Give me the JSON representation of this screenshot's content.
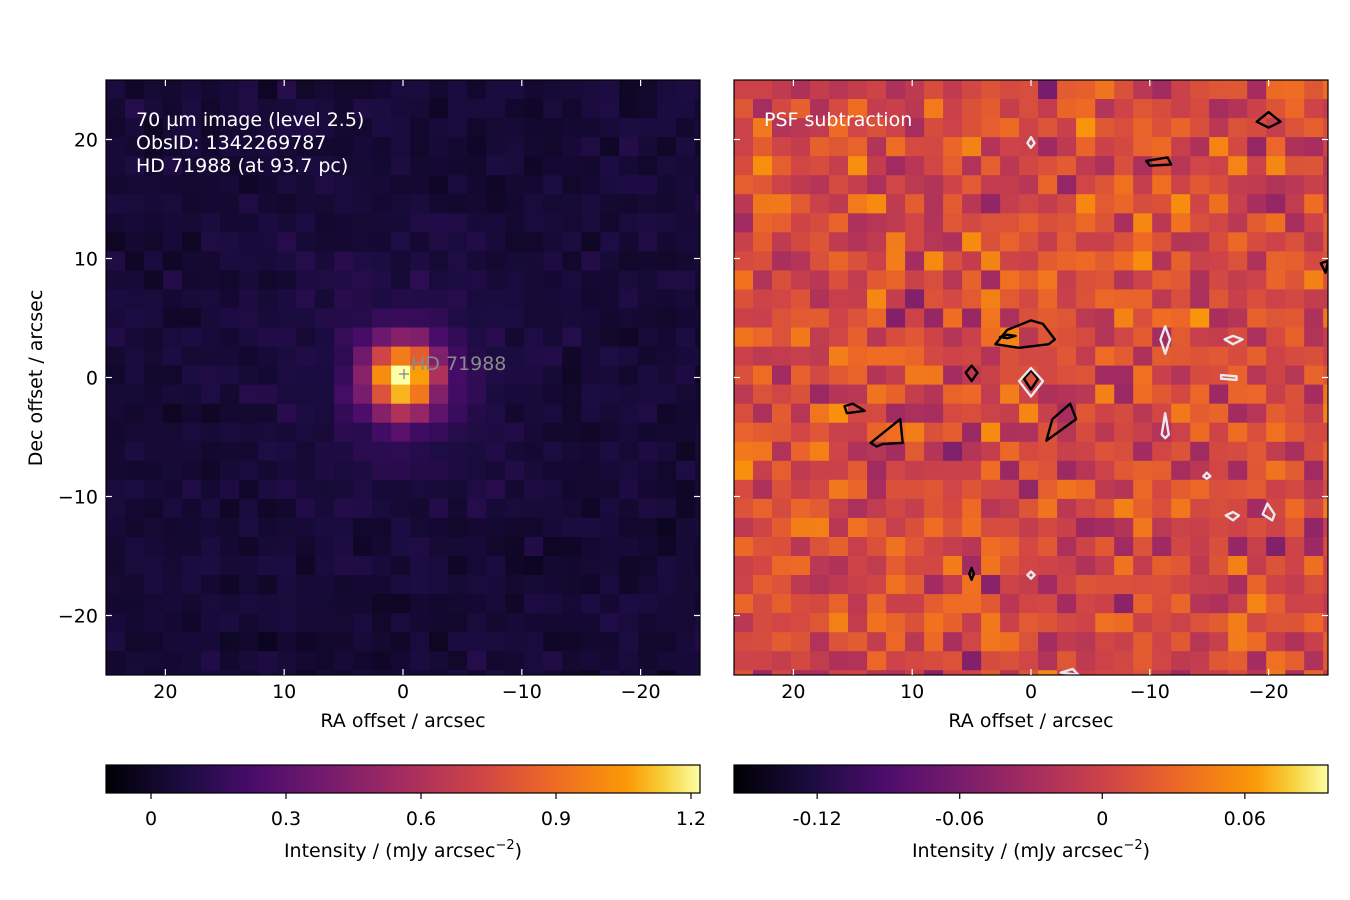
{
  "chart_data": [
    {
      "type": "heatmap",
      "panel": "left",
      "annotation_lines": [
        "70 µm image (level 2.5)",
        "ObsID: 1342269787",
        "HD 71988 (at 93.7 pc)"
      ],
      "star_label": "HD  71988",
      "star_position": [
        0,
        0
      ],
      "xlabel": "RA offset / arcsec",
      "ylabel": "Dec offset / arcsec",
      "xlim": [
        25,
        -25
      ],
      "ylim": [
        -25,
        25
      ],
      "xticks": [
        20,
        10,
        0,
        -10,
        -20
      ],
      "xtick_labels": [
        "20",
        "10",
        "0",
        "−10",
        "−20"
      ],
      "yticks": [
        20,
        10,
        0,
        -10,
        -20
      ],
      "ytick_labels": [
        "20",
        "10",
        "0",
        "−10",
        "−20"
      ],
      "pixel_size_arcsec": 1.6,
      "colormap": "inferno",
      "colorbar": {
        "range": [
          -0.1,
          1.22
        ],
        "ticks": [
          0,
          0.3,
          0.6,
          0.9,
          1.2
        ],
        "tick_labels": [
          "0",
          "0.3",
          "0.6",
          "0.9",
          "1.2"
        ],
        "label": "Intensity / (mJy arcsec",
        "label_exp": "−2",
        "label_end": ")"
      },
      "source": {
        "x": 0,
        "y": 0,
        "peak": 1.2,
        "sigma_arcsec": 2.2
      },
      "background_level": 0.04
    },
    {
      "type": "heatmap",
      "panel": "right",
      "annotation_lines": [
        "PSF subtraction"
      ],
      "xlabel": "RA offset / arcsec",
      "xlim": [
        25,
        -25
      ],
      "ylim": [
        -25,
        25
      ],
      "xticks": [
        20,
        10,
        0,
        -10,
        -20
      ],
      "xtick_labels": [
        "20",
        "10",
        "0",
        "−10",
        "−20"
      ],
      "pixel_size_arcsec": 1.6,
      "colormap": "inferno",
      "colorbar": {
        "range": [
          -0.155,
          0.095
        ],
        "ticks": [
          -0.12,
          -0.06,
          0,
          0.06
        ],
        "tick_labels": [
          "-0.12",
          "-0.06",
          "0",
          "0.06"
        ],
        "label": "Intensity / (mJy arcsec",
        "label_exp": "−2",
        "label_end": ")"
      },
      "contours_positive": [
        [
          [
            3,
            2.8
          ],
          [
            2,
            4
          ],
          [
            0,
            4.8
          ],
          [
            -1,
            4.5
          ],
          [
            -2,
            3.2
          ],
          [
            -1.5,
            2.8
          ],
          [
            1,
            2.5
          ],
          [
            3,
            2.8
          ]
        ],
        [
          [
            2,
            3.3
          ],
          [
            1.3,
            3.5
          ],
          [
            2,
            3.6
          ],
          [
            2.6,
            3.4
          ],
          [
            2,
            3.3
          ]
        ],
        [
          [
            5,
            -0.3
          ],
          [
            4.5,
            0.4
          ],
          [
            5,
            1
          ],
          [
            5.5,
            0.4
          ],
          [
            5,
            -0.3
          ]
        ],
        [
          [
            0,
            -1
          ],
          [
            -0.6,
            -0.1
          ],
          [
            0,
            0.6
          ],
          [
            0.6,
            -0.1
          ],
          [
            0,
            -1
          ]
        ],
        [
          [
            15,
            -2.2
          ],
          [
            14,
            -2.8
          ],
          [
            15.5,
            -3
          ],
          [
            15.7,
            -2.4
          ],
          [
            15,
            -2.2
          ]
        ],
        [
          [
            13.5,
            -5.5
          ],
          [
            11,
            -3.5
          ],
          [
            10.8,
            -5.5
          ],
          [
            12.5,
            -5.6
          ],
          [
            13,
            -5.8
          ],
          [
            13.5,
            -5.5
          ]
        ],
        [
          [
            -1.3,
            -5.3
          ],
          [
            -1.8,
            -3.5
          ],
          [
            -3.3,
            -2.2
          ],
          [
            -3.8,
            -3.5
          ],
          [
            -2,
            -4.8
          ],
          [
            -1.3,
            -5.3
          ]
        ],
        [
          [
            -9.7,
            18.2
          ],
          [
            -11.5,
            18.5
          ],
          [
            -11.8,
            17.9
          ],
          [
            -10,
            17.8
          ],
          [
            -9.7,
            18.2
          ]
        ],
        [
          [
            -19,
            21.5
          ],
          [
            -20,
            22.3
          ],
          [
            -21,
            21.5
          ],
          [
            -20,
            21
          ],
          [
            -19,
            21.5
          ]
        ],
        [
          [
            5,
            -16
          ],
          [
            4.8,
            -16.5
          ],
          [
            5,
            -17
          ],
          [
            5.2,
            -16.5
          ],
          [
            5,
            -16
          ]
        ],
        [
          [
            -24.4,
            9.6
          ],
          [
            -24.8,
            8.8
          ],
          [
            -25,
            9.8
          ],
          [
            -24.4,
            9.6
          ]
        ]
      ],
      "contours_negative": [
        [
          [
            0,
            0.8
          ],
          [
            -1,
            -0.3
          ],
          [
            0,
            -1.6
          ],
          [
            1,
            -0.3
          ],
          [
            0,
            0.8
          ]
        ],
        [
          [
            -11.3,
            4.3
          ],
          [
            -11.7,
            3.2
          ],
          [
            -11.3,
            2
          ],
          [
            -10.9,
            3.2
          ],
          [
            -11.3,
            4.3
          ]
        ],
        [
          [
            -17,
            3.5
          ],
          [
            -17.8,
            3.2
          ],
          [
            -17,
            2.8
          ],
          [
            -16.3,
            3.2
          ],
          [
            -17,
            3.5
          ]
        ],
        [
          [
            -16,
            0.2
          ],
          [
            -17.3,
            0.1
          ],
          [
            -17.3,
            -0.2
          ],
          [
            -16,
            -0.1
          ],
          [
            -16,
            0.2
          ]
        ],
        [
          [
            -11.3,
            -3
          ],
          [
            -11.6,
            -4.8
          ],
          [
            -11.3,
            -5.1
          ],
          [
            -11,
            -4.8
          ],
          [
            -11.3,
            -3
          ]
        ],
        [
          [
            -14.8,
            -8
          ],
          [
            -15.1,
            -8.3
          ],
          [
            -14.8,
            -8.5
          ],
          [
            -14.5,
            -8.3
          ],
          [
            -14.8,
            -8
          ]
        ],
        [
          [
            -17,
            -11.3
          ],
          [
            -16.4,
            -11.6
          ],
          [
            -17,
            -12
          ],
          [
            -17.5,
            -11.6
          ],
          [
            -17,
            -11.3
          ]
        ],
        [
          [
            -19.9,
            -10.6
          ],
          [
            -19.5,
            -11.5
          ],
          [
            -20.3,
            -12
          ],
          [
            -20.5,
            -11.5
          ],
          [
            -19.9,
            -10.6
          ]
        ],
        [
          [
            0,
            20.2
          ],
          [
            -0.3,
            19.7
          ],
          [
            0,
            19.3
          ],
          [
            0.3,
            19.7
          ],
          [
            0,
            20.2
          ]
        ],
        [
          [
            0,
            -16.3
          ],
          [
            -0.3,
            -16.6
          ],
          [
            0,
            -16.9
          ],
          [
            0.3,
            -16.6
          ],
          [
            0,
            -16.3
          ]
        ],
        [
          [
            -3.5,
            -24.5
          ],
          [
            -2.5,
            -24.8
          ],
          [
            -4,
            -25
          ],
          [
            -3.5,
            -24.5
          ]
        ]
      ]
    }
  ]
}
